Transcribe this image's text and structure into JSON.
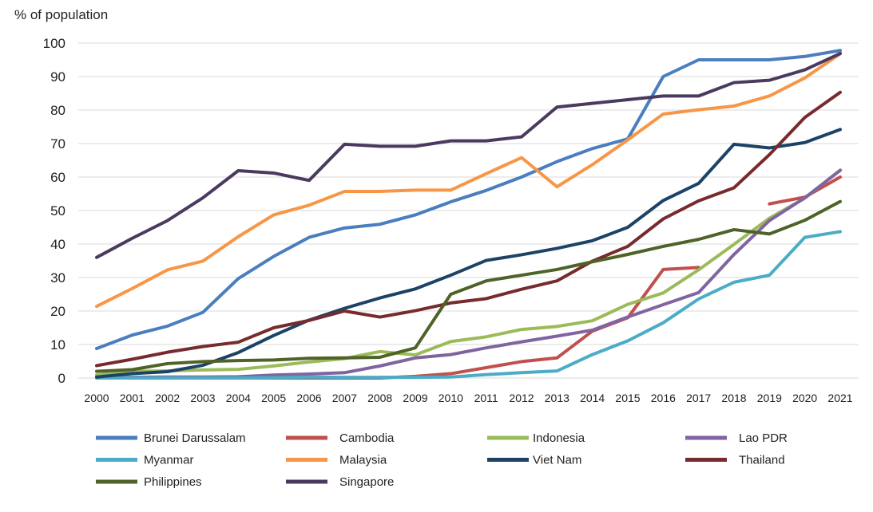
{
  "chart_data": {
    "type": "line",
    "title": "",
    "ylabel": "% of population",
    "xlabel": "",
    "ylim": [
      0,
      100
    ],
    "yticks": [
      "0",
      "10",
      "20",
      "30",
      "40",
      "50",
      "60",
      "70",
      "80",
      "90",
      "100"
    ],
    "grid": true,
    "legend_position": "bottom",
    "x": [
      "2000",
      "2001",
      "2002",
      "2003",
      "2004",
      "2005",
      "2006",
      "2007",
      "2008",
      "2009",
      "2010",
      "2011",
      "2012",
      "2013",
      "2014",
      "2015",
      "2016",
      "2017",
      "2018",
      "2019",
      "2020",
      "2021"
    ],
    "series": [
      {
        "name": "Brunei Darussalam",
        "color": "#4a7ebf",
        "values": [
          8.8,
          12.8,
          15.5,
          19.6,
          29.7,
          36.3,
          42,
          44.8,
          45.9,
          48.7,
          52.6,
          56,
          60,
          64.6,
          68.5,
          71.4,
          90,
          95,
          95,
          95,
          96,
          97.8
        ]
      },
      {
        "name": "Cambodia",
        "color": "#c0504d",
        "values": [
          0,
          0,
          0,
          0,
          0,
          0,
          0,
          0,
          0,
          0.5,
          1.3,
          3.1,
          4.9,
          6,
          14,
          18,
          32.4,
          33,
          null,
          52,
          54,
          60
        ]
      },
      {
        "name": "Indonesia",
        "color": "#9bbb59",
        "values": [
          0.9,
          2,
          2.1,
          2.4,
          2.6,
          3.6,
          4.8,
          5.8,
          7.9,
          6.9,
          10.9,
          12.3,
          14.5,
          15.4,
          17.1,
          22,
          25.4,
          32.3,
          39.9,
          47.7,
          53.7,
          62.1
        ]
      },
      {
        "name": "Lao PDR",
        "color": "#8064a2",
        "values": [
          0.1,
          0.2,
          0.3,
          0.3,
          0.4,
          0.9,
          1.2,
          1.6,
          3.6,
          6,
          7,
          9,
          10.8,
          12.5,
          14.3,
          18.2,
          21.9,
          25.5,
          36.9,
          47,
          53.8,
          62
        ]
      },
      {
        "name": "Myanmar",
        "color": "#4bacc6",
        "values": [
          0,
          0,
          0,
          0,
          0,
          0.1,
          0.3,
          0.2,
          0.2,
          0.2,
          0.3,
          1,
          1.6,
          2.1,
          7,
          11.1,
          16.5,
          23.6,
          28.6,
          30.7,
          42,
          43.7
        ]
      },
      {
        "name": "Malaysia",
        "color": "#f79646",
        "values": [
          21.4,
          26.7,
          32.3,
          34.9,
          42.2,
          48.7,
          51.6,
          55.7,
          55.7,
          56.1,
          56.1,
          61,
          65.8,
          57.1,
          63.7,
          71.1,
          78.8,
          80.1,
          81.2,
          84.2,
          89.6,
          96.8
        ]
      },
      {
        "name": "Viet Nam",
        "color": "#1c4366",
        "values": [
          0.3,
          1.3,
          1.9,
          3.8,
          7.6,
          12.7,
          17.3,
          20.8,
          23.9,
          26.6,
          30.7,
          35.1,
          36.8,
          38.7,
          41,
          45,
          53,
          58.1,
          69.8,
          68.7,
          70.3,
          74.2
        ]
      },
      {
        "name": "Thailand",
        "color": "#772b2e",
        "values": [
          3.7,
          5.6,
          7.7,
          9.4,
          10.7,
          15,
          17.2,
          20,
          18.2,
          20.1,
          22.4,
          23.7,
          26.5,
          29,
          34.9,
          39.3,
          47.5,
          52.9,
          56.8,
          66.7,
          77.8,
          85.3
        ]
      },
      {
        "name": "Philippines",
        "color": "#4f6228",
        "values": [
          2,
          2.5,
          4.3,
          4.9,
          5.2,
          5.4,
          5.9,
          6,
          6.2,
          9,
          25,
          29,
          30.7,
          32.4,
          34.7,
          36.9,
          39.3,
          41.4,
          44.3,
          43,
          47.1,
          52.7
        ]
      },
      {
        "name": "Singapore",
        "color": "#4a3a5f",
        "values": [
          36,
          41.7,
          47,
          53.8,
          61.9,
          61.2,
          59,
          69.8,
          69.2,
          69.2,
          70.8,
          70.8,
          72,
          80.9,
          82,
          83.1,
          84.2,
          84.2,
          88.2,
          88.9,
          92,
          96.9
        ]
      }
    ]
  }
}
